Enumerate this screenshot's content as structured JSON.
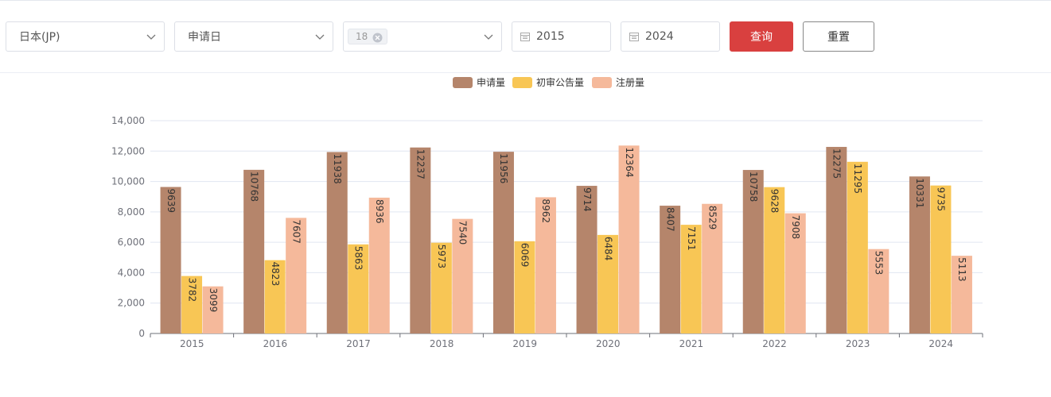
{
  "filters": {
    "country": "日本(JP)",
    "date_type": "申请日",
    "tag": "18",
    "start_year": "2015",
    "end_year": "2024"
  },
  "buttons": {
    "query": "查询",
    "reset": "重置"
  },
  "chart_data": {
    "type": "bar",
    "categories": [
      "2015",
      "2016",
      "2017",
      "2018",
      "2019",
      "2020",
      "2021",
      "2022",
      "2023",
      "2024"
    ],
    "series": [
      {
        "name": "申请量",
        "color": "#b5856b",
        "values": [
          9639,
          10768,
          11938,
          12237,
          11956,
          9714,
          8407,
          10758,
          12275,
          10331
        ]
      },
      {
        "name": "初审公告量",
        "color": "#f8c655",
        "values": [
          3782,
          4823,
          5863,
          5973,
          6069,
          6484,
          7151,
          9628,
          11295,
          9735
        ]
      },
      {
        "name": "注册量",
        "color": "#f5b99b",
        "values": [
          3099,
          7607,
          8936,
          7540,
          8962,
          12364,
          8529,
          7908,
          5553,
          5113
        ]
      }
    ],
    "ylim": [
      0,
      14000
    ],
    "yticks": [
      0,
      {
        "value": 2000,
        "label": "2,000"
      },
      {
        "value": 4000,
        "label": "4,000"
      },
      {
        "value": 6000,
        "label": "6,000"
      },
      {
        "value": 8000,
        "label": "8,000"
      },
      {
        "value": 10000,
        "label": "10,000"
      },
      {
        "value": 12000,
        "label": "12,000"
      },
      {
        "value": 14000,
        "label": "14,000"
      }
    ],
    "grid": true,
    "legend": "top"
  }
}
